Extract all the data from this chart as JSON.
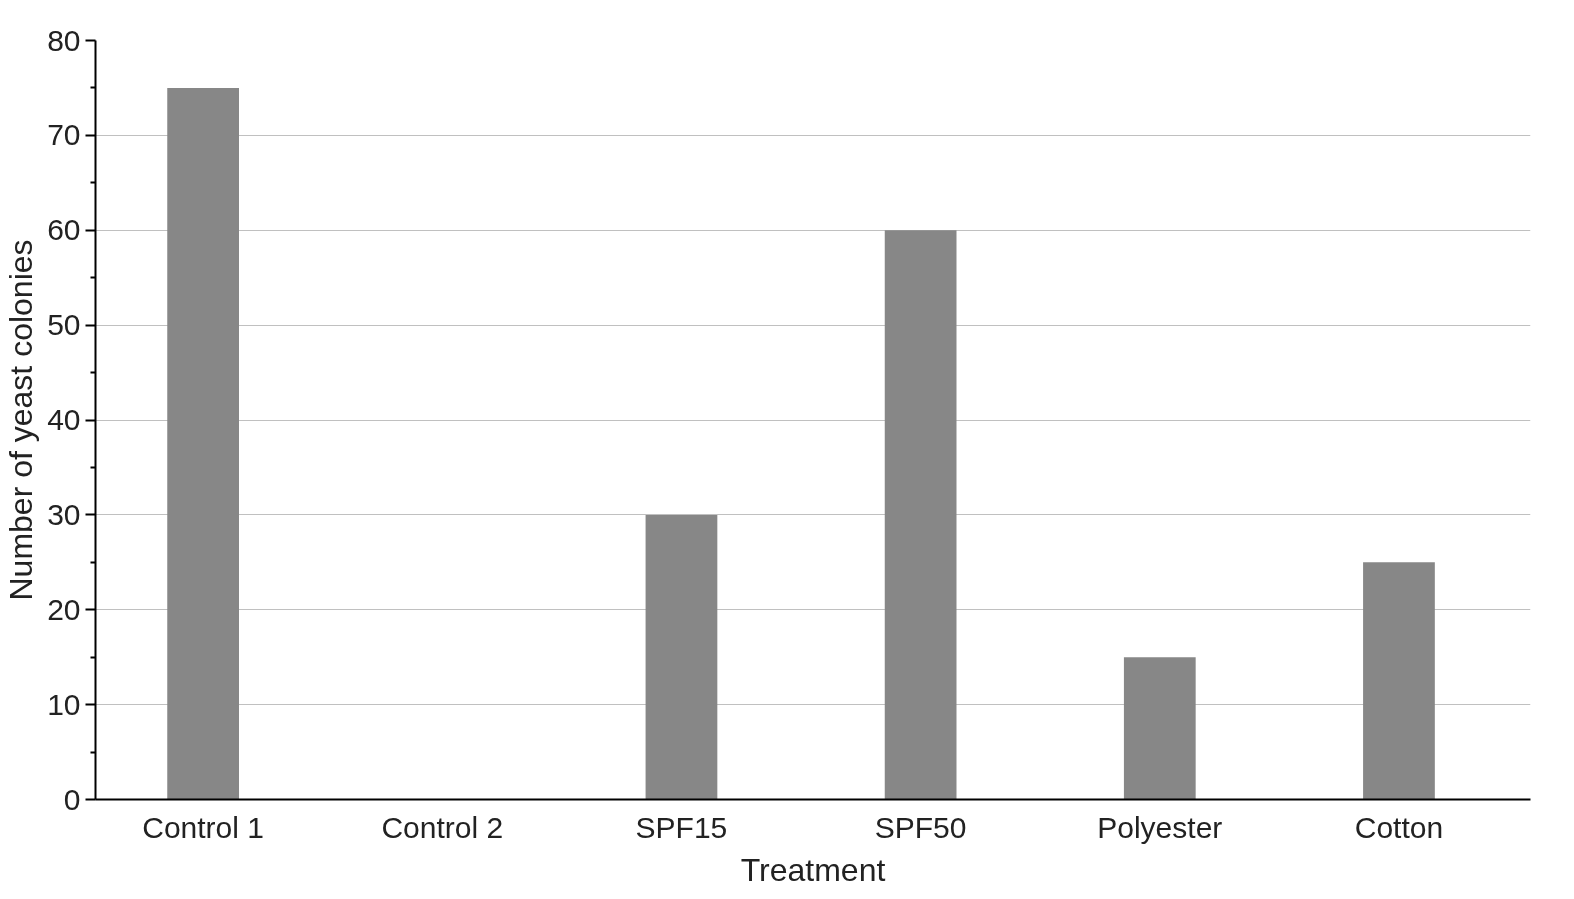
{
  "chart_data": {
    "type": "bar",
    "xlabel": "Treatment",
    "ylabel": "Number of yeast colonies",
    "categories": [
      "Control 1",
      "Control 2",
      "SPF15",
      "SPF50",
      "Polyester",
      "Cotton"
    ],
    "values": [
      75,
      0,
      30,
      60,
      15,
      25
    ],
    "color": "#878787",
    "ylim": [
      0,
      80
    ],
    "yticks": [
      0,
      {
        "value": 5,
        "label": null
      },
      10,
      {
        "value": 15,
        "label": null
      },
      20,
      {
        "value": 25,
        "label": null
      },
      30,
      {
        "value": 35,
        "label": null
      },
      40,
      {
        "value": 45,
        "label": null
      },
      50,
      {
        "value": 55,
        "label": null
      },
      60,
      {
        "value": 65,
        "label": null
      },
      70,
      {
        "value": 75,
        "label": null
      },
      80
    ],
    "grid": "y"
  }
}
